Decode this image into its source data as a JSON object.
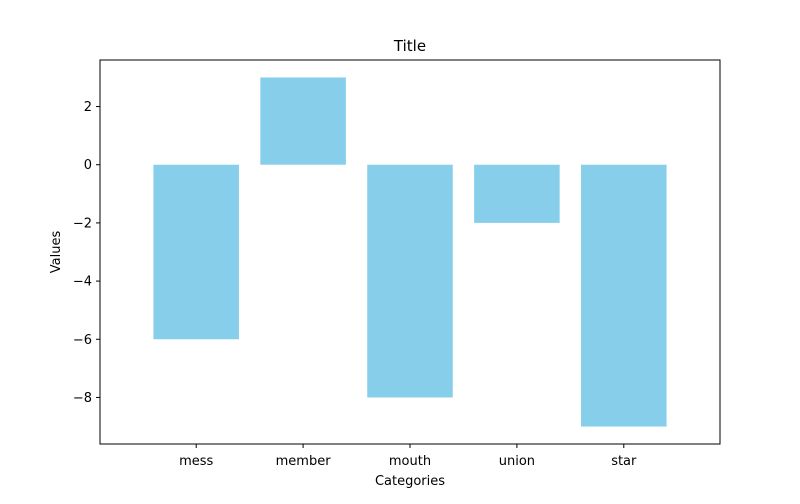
{
  "chart_data": {
    "type": "bar",
    "title": "Title",
    "xlabel": "Categories",
    "ylabel": "Values",
    "categories": [
      "mess",
      "member",
      "mouth",
      "union",
      "star"
    ],
    "values": [
      -6,
      3,
      -8,
      -2,
      -9
    ],
    "ylim": [
      -9.6,
      3.6
    ],
    "yticks": [
      2,
      0,
      -2,
      -4,
      -6,
      -8
    ],
    "ytick_labels": [
      "2",
      "0",
      "−2",
      "−4",
      "−6",
      "−8"
    ],
    "grid": false,
    "legend": "none",
    "bar_color": "#87ceeb"
  }
}
